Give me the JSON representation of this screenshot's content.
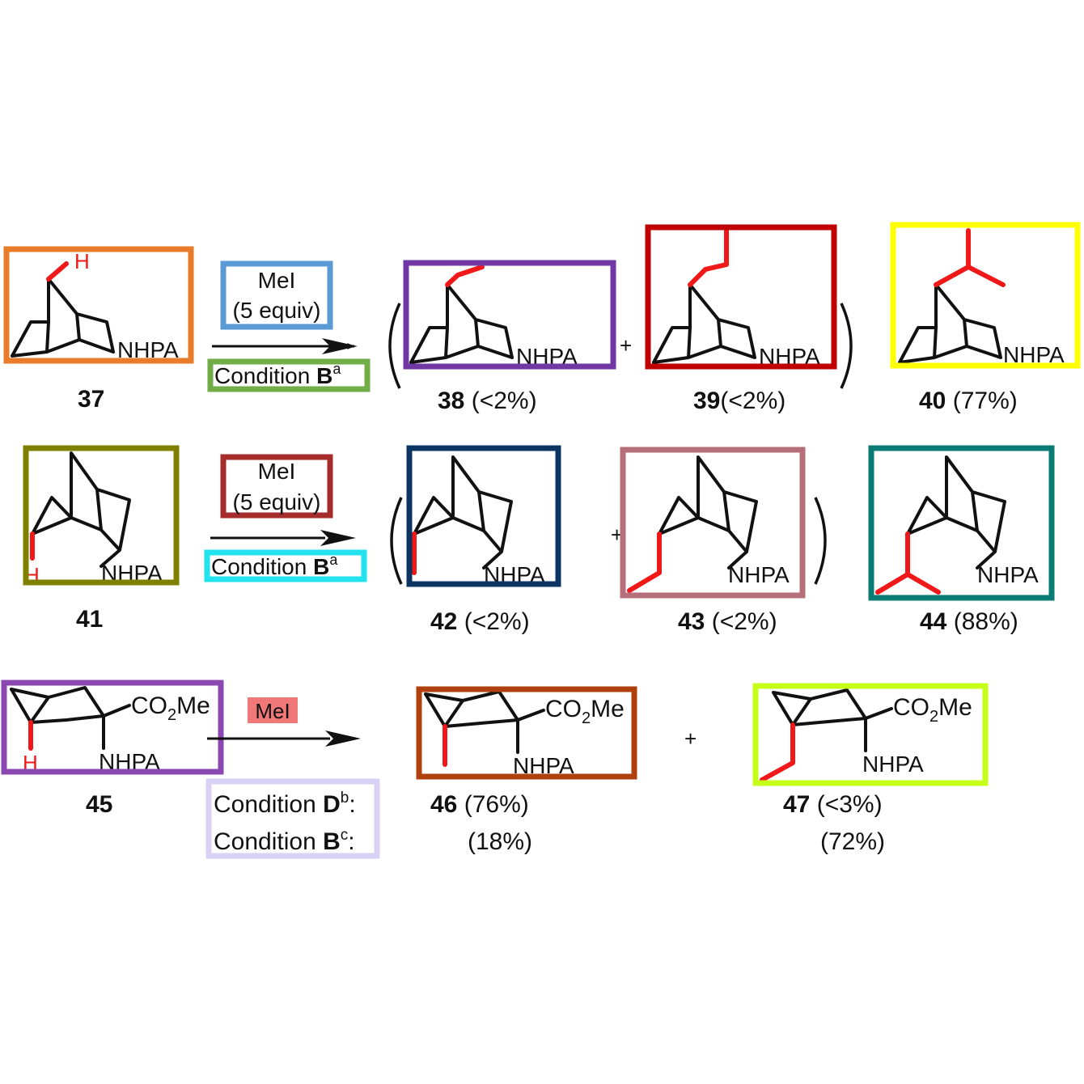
{
  "colors": {
    "c37": "#e87c2a",
    "c38": "#7137a4",
    "c39": "#c00000",
    "c40": "#ffff00",
    "c41": "#808000",
    "c42": "#0c3463",
    "c43": "#b66f79",
    "c44": "#0b7b75",
    "c45": "#8b48b1",
    "c46": "#b0400e",
    "c47": "#c6ff18",
    "reagent1": "#5b9bd5",
    "cond1": "#70ad47",
    "reagent2": "#a62b2b",
    "cond2": "#22e3ee",
    "reagent3": "#f07878",
    "cond3": "#d9d2f4",
    "red_atom": "#f01818"
  },
  "labels": {
    "nhpa": "NHPA",
    "h": "H",
    "co2me_prefix": "CO",
    "co2me_sub": "2",
    "co2me_suffix": "Me"
  },
  "row1": {
    "reagent_line1": "MeI",
    "reagent_line2": "(5 equiv)",
    "condition_text": "Condition ",
    "condition_letter": "B",
    "condition_sup": "a",
    "plus": "+",
    "c37": {
      "num": "37",
      "yield": ""
    },
    "c38": {
      "num": "38",
      "yield": " (<2%)"
    },
    "c39": {
      "num": "39",
      "yield": "(<2%)"
    },
    "c40": {
      "num": "40",
      "yield": " (77%)"
    }
  },
  "row2": {
    "reagent_line1": "MeI",
    "reagent_line2": "(5 equiv)",
    "condition_text": "Condition ",
    "condition_letter": "B",
    "condition_sup": "a",
    "plus": "+",
    "c41": {
      "num": "41",
      "yield": ""
    },
    "c42": {
      "num": "42",
      "yield": " (<2%)"
    },
    "c43": {
      "num": "43",
      "yield": " (<2%)"
    },
    "c44": {
      "num": "44",
      "yield": " (88%)"
    }
  },
  "row3": {
    "reagent": "MeI",
    "plus": "+",
    "cond_d_text": "Condition ",
    "cond_d_letter": "D",
    "cond_d_sup": "b",
    "cond_b_text": "Condition ",
    "cond_b_letter": "B",
    "cond_b_sup": "c",
    "colon": ":",
    "c45": {
      "num": "45"
    },
    "c46": {
      "num": "46",
      "yield_d": " (76%)",
      "yield_b": "(18%)"
    },
    "c47": {
      "num": "47",
      "yield_d": " (<3%)",
      "yield_b": "(72%)"
    }
  }
}
